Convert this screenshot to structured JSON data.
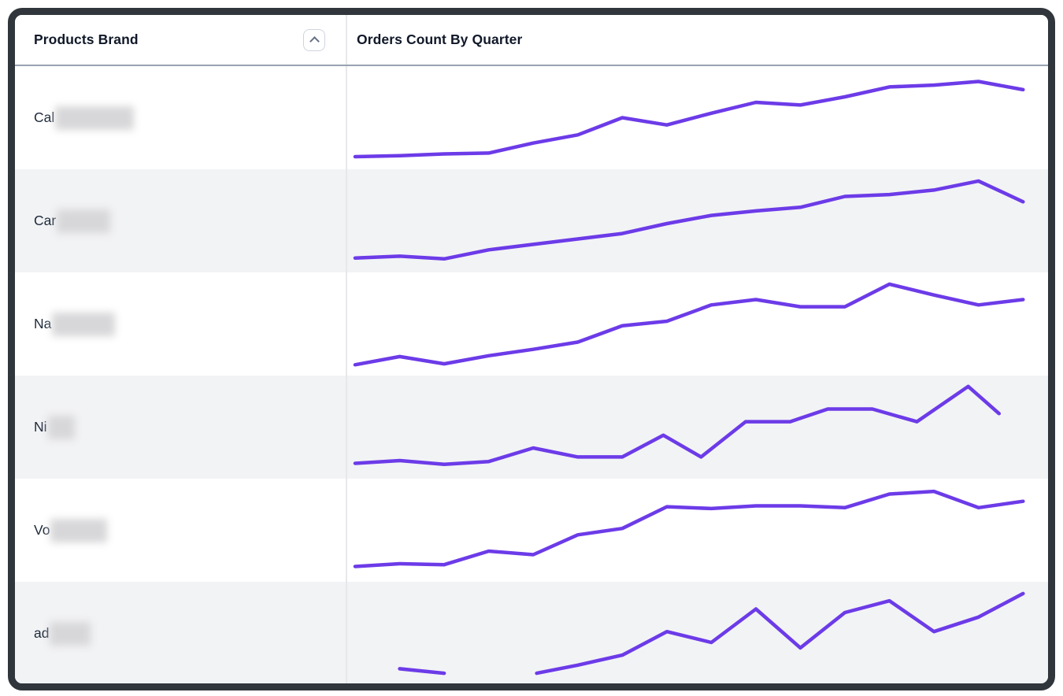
{
  "window": {
    "frame_color": "#30363b",
    "background": "#ffffff"
  },
  "table": {
    "columns": [
      {
        "label": "Products Brand",
        "sortable": true,
        "sort_icon": "chevron-up-icon"
      },
      {
        "label": "Orders Count By Quarter"
      }
    ],
    "stripe_color": "#f2f3f5",
    "accent_color": "#6c3be8",
    "rows": [
      {
        "brand_visible": "Cal",
        "brand_redacted": true,
        "redact_width": 100
      },
      {
        "brand_visible": "Car",
        "brand_redacted": true,
        "redact_width": 68
      },
      {
        "brand_visible": "Na",
        "brand_redacted": true,
        "redact_width": 80
      },
      {
        "brand_visible": "Ni",
        "brand_redacted": true,
        "redact_width": 34
      },
      {
        "brand_visible": "Vo",
        "brand_redacted": true,
        "redact_width": 72
      },
      {
        "brand_visible": "ad",
        "brand_redacted": true,
        "redact_width": 52
      }
    ]
  },
  "chart_data": {
    "type": "line",
    "title": "Orders Count By Quarter",
    "x_unit": "quarter",
    "value_scale": "normalized 0-100 (sparklines, no axes or tick labels shown)",
    "line_color": "#6c3be8",
    "grid": false,
    "legend": false,
    "rows": [
      {
        "brand": "Cal (redacted)",
        "segments": [
          [
            [
              0.0,
              7
            ],
            [
              0.065,
              8
            ],
            [
              0.13,
              10
            ],
            [
              0.195,
              11
            ],
            [
              0.26,
              22
            ],
            [
              0.325,
              31
            ],
            [
              0.39,
              50
            ],
            [
              0.455,
              42
            ],
            [
              0.52,
              55
            ],
            [
              0.585,
              67
            ],
            [
              0.65,
              64
            ],
            [
              0.715,
              73
            ],
            [
              0.78,
              84
            ],
            [
              0.845,
              86
            ],
            [
              0.91,
              90
            ],
            [
              0.975,
              81
            ]
          ]
        ]
      },
      {
        "brand": "Car (redacted)",
        "segments": [
          [
            [
              0.0,
              9
            ],
            [
              0.065,
              11
            ],
            [
              0.13,
              8
            ],
            [
              0.195,
              18
            ],
            [
              0.26,
              24
            ],
            [
              0.325,
              30
            ],
            [
              0.39,
              36
            ],
            [
              0.455,
              47
            ],
            [
              0.52,
              56
            ],
            [
              0.585,
              61
            ],
            [
              0.65,
              65
            ],
            [
              0.715,
              77
            ],
            [
              0.78,
              79
            ],
            [
              0.845,
              84
            ],
            [
              0.91,
              94
            ],
            [
              0.975,
              71
            ]
          ]
        ]
      },
      {
        "brand": "Na (redacted)",
        "segments": [
          [
            [
              0.0,
              5
            ],
            [
              0.065,
              14
            ],
            [
              0.13,
              6
            ],
            [
              0.195,
              15
            ],
            [
              0.26,
              22
            ],
            [
              0.325,
              30
            ],
            [
              0.39,
              48
            ],
            [
              0.455,
              53
            ],
            [
              0.52,
              71
            ],
            [
              0.585,
              77
            ],
            [
              0.65,
              69
            ],
            [
              0.715,
              69
            ],
            [
              0.78,
              94
            ],
            [
              0.845,
              82
            ],
            [
              0.91,
              71
            ],
            [
              0.975,
              77
            ]
          ]
        ]
      },
      {
        "brand": "Ni (redacted)",
        "segments": [
          [
            [
              0.0,
              10
            ],
            [
              0.065,
              13
            ],
            [
              0.13,
              9
            ],
            [
              0.195,
              12
            ],
            [
              0.26,
              27
            ],
            [
              0.325,
              17
            ],
            [
              0.39,
              17
            ],
            [
              0.45,
              41
            ],
            [
              0.505,
              17
            ],
            [
              0.57,
              56
            ],
            [
              0.635,
              56
            ],
            [
              0.69,
              70
            ],
            [
              0.755,
              70
            ],
            [
              0.82,
              56
            ],
            [
              0.895,
              95
            ],
            [
              0.94,
              65
            ]
          ]
        ]
      },
      {
        "brand": "Vo (redacted)",
        "segments": [
          [
            [
              0.0,
              10
            ],
            [
              0.065,
              13
            ],
            [
              0.13,
              12
            ],
            [
              0.195,
              27
            ],
            [
              0.26,
              23
            ],
            [
              0.325,
              45
            ],
            [
              0.39,
              52
            ],
            [
              0.455,
              76
            ],
            [
              0.52,
              74
            ],
            [
              0.585,
              77
            ],
            [
              0.65,
              77
            ],
            [
              0.715,
              75
            ],
            [
              0.78,
              90
            ],
            [
              0.845,
              93
            ],
            [
              0.91,
              75
            ],
            [
              0.975,
              82
            ]
          ]
        ]
      },
      {
        "brand": "ad (redacted)",
        "segments": [
          [
            [
              0.065,
              11
            ],
            [
              0.13,
              6
            ]
          ],
          [
            [
              0.265,
              6
            ],
            [
              0.325,
              15
            ],
            [
              0.39,
              26
            ],
            [
              0.455,
              52
            ],
            [
              0.52,
              40
            ],
            [
              0.585,
              77
            ],
            [
              0.65,
              34
            ],
            [
              0.715,
              73
            ],
            [
              0.78,
              86
            ],
            [
              0.845,
              52
            ],
            [
              0.91,
              68
            ],
            [
              0.975,
              94
            ]
          ]
        ]
      }
    ]
  }
}
